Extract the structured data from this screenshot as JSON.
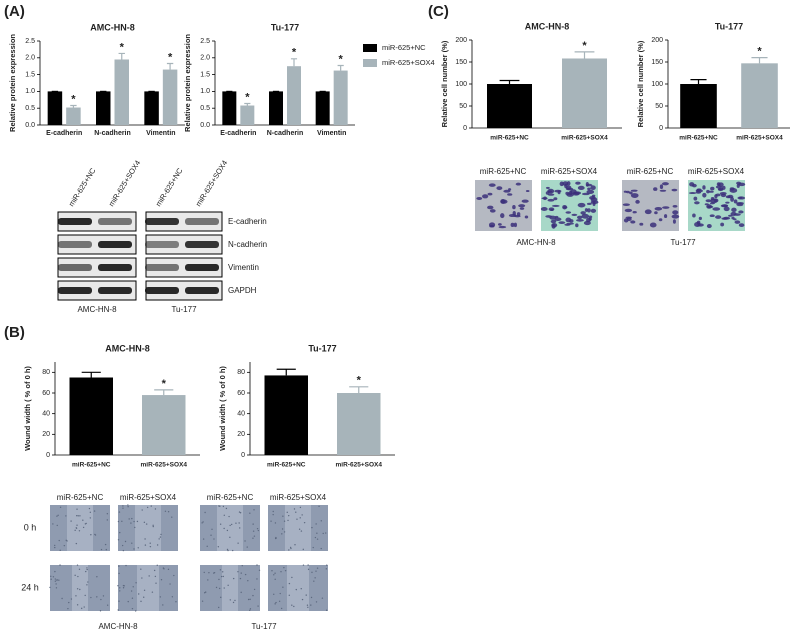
{
  "panel_labels": [
    "(A)",
    "(B)",
    "(C)"
  ],
  "chart_data": [
    {
      "type": "grouped-bar",
      "title": "AMC-HN-8",
      "y_label": "Relative protein expression",
      "categories": [
        "E-cadherin",
        "N-cadherin",
        "Vimentin"
      ],
      "series": [
        {
          "name": "miR-625+NC",
          "color": "#000000",
          "values": [
            1,
            1,
            1
          ],
          "errors": [
            0,
            0,
            0
          ],
          "annotations": [
            null,
            null,
            null
          ]
        },
        {
          "name": "miR-625+SOX4",
          "color": "#a7b4ba",
          "values": [
            0.52,
            1.95,
            1.65
          ],
          "errors": [
            0.06,
            0.18,
            0.18
          ],
          "annotations": [
            "*",
            "*",
            "*"
          ]
        }
      ],
      "ylim": [
        0,
        2.5
      ],
      "yticks": [
        {
          "value": 0,
          "label": "0.0"
        },
        {
          "value": 0.5,
          "label": "0.5"
        },
        {
          "value": 1,
          "label": "1.0"
        },
        {
          "value": 1.5,
          "label": "1.5"
        },
        {
          "value": 2,
          "label": "2.0"
        },
        {
          "value": 2.5,
          "label": "2.5"
        }
      ]
    },
    {
      "type": "grouped-bar",
      "title": "Tu-177",
      "y_label": "Relative protein expression",
      "categories": [
        "E-cadherin",
        "N-cadherin",
        "Vimentin"
      ],
      "series": [
        {
          "name": "miR-625+NC",
          "color": "#000000",
          "values": [
            1,
            1,
            1
          ],
          "errors": [
            0,
            0,
            0
          ],
          "annotations": [
            null,
            null,
            null
          ]
        },
        {
          "name": "miR-625+SOX4",
          "color": "#a7b4ba",
          "values": [
            0.58,
            1.75,
            1.62
          ],
          "errors": [
            0.06,
            0.22,
            0.15
          ],
          "annotations": [
            "*",
            "*",
            "*"
          ]
        }
      ],
      "ylim": [
        0,
        2.5
      ],
      "yticks": [
        {
          "value": 0,
          "label": "0.0"
        },
        {
          "value": 0.5,
          "label": "0.5"
        },
        {
          "value": 1,
          "label": "1.0"
        },
        {
          "value": 1.5,
          "label": "1.5"
        },
        {
          "value": 2,
          "label": "2.0"
        },
        {
          "value": 2.5,
          "label": "2.5"
        }
      ],
      "legend": "right"
    },
    {
      "type": "bar",
      "title": "AMC-HN-8",
      "y_label": "Wound width ( % of 0 h)",
      "categories": [
        "miR-625+NC",
        "miR-625+SOX4"
      ],
      "values": [
        75,
        58
      ],
      "errors": [
        5,
        5
      ],
      "colors": [
        "#000000",
        "#a7b4ba"
      ],
      "annotations": [
        null,
        "*"
      ],
      "ylim": [
        0,
        90
      ],
      "yticks": [
        0,
        20,
        40,
        60,
        80
      ]
    },
    {
      "type": "bar",
      "title": "Tu-177",
      "y_label": "Wound width ( % of 0 h)",
      "categories": [
        "miR-625+NC",
        "miR-625+SOX4"
      ],
      "values": [
        77,
        60
      ],
      "errors": [
        6,
        6
      ],
      "colors": [
        "#000000",
        "#a7b4ba"
      ],
      "annotations": [
        null,
        "*"
      ],
      "ylim": [
        0,
        90
      ],
      "yticks": [
        0,
        20,
        40,
        60,
        80
      ]
    },
    {
      "type": "bar",
      "title": "AMC-HN-8",
      "y_label": "Relative cell number (%)",
      "categories": [
        "miR-625+NC",
        "miR-625+SOX4"
      ],
      "values": [
        100,
        158
      ],
      "errors": [
        8,
        15
      ],
      "colors": [
        "#000000",
        "#a7b4ba"
      ],
      "annotations": [
        null,
        "*"
      ],
      "ylim": [
        0,
        200
      ],
      "yticks": [
        0,
        50,
        100,
        150,
        200
      ]
    },
    {
      "type": "bar",
      "title": "Tu-177",
      "y_label": "Relative cell number (%)",
      "categories": [
        "miR-625+NC",
        "miR-625+SOX4"
      ],
      "values": [
        100,
        147
      ],
      "errors": [
        10,
        13
      ],
      "colors": [
        "#000000",
        "#a7b4ba"
      ],
      "annotations": [
        null,
        "*"
      ],
      "ylim": [
        0,
        200
      ],
      "yticks": [
        0,
        50,
        100,
        150,
        200
      ]
    }
  ],
  "blot": {
    "lanes": [
      "miR-625+NC",
      "miR-625+SOX4",
      "miR-625+NC",
      "miR-625+SOX4"
    ],
    "proteins": [
      "E-cadherin",
      "N-cadherin",
      "Vimentin",
      "GAPDH"
    ],
    "cell_lines": [
      "AMC-HN-8",
      "Tu-177"
    ]
  },
  "wound": {
    "groups": [
      "miR-625+NC",
      "miR-625+SOX4",
      "miR-625+NC",
      "miR-625+SOX4"
    ],
    "times": [
      "0 h",
      "24 h"
    ],
    "cell_lines": [
      "AMC-HN-8",
      "Tu-177"
    ]
  },
  "transwell": {
    "groups": [
      "miR-625+NC",
      "miR-625+SOX4",
      "miR-625+NC",
      "miR-625+SOX4"
    ],
    "cell_lines": [
      "AMC-HN-8",
      "Tu-177"
    ]
  }
}
